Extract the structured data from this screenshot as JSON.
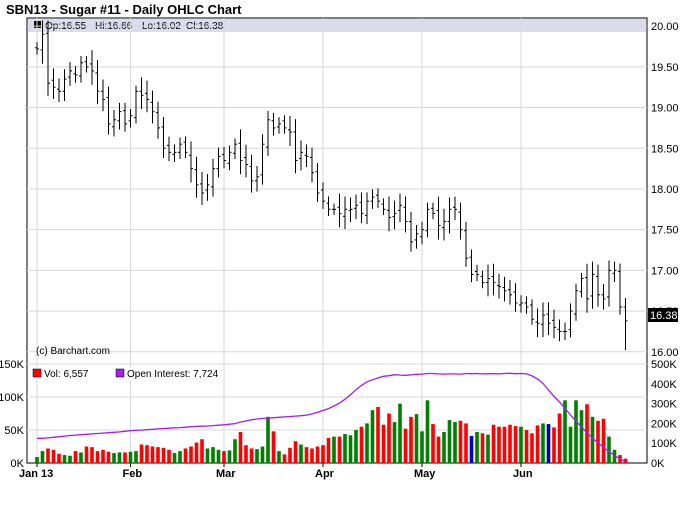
{
  "chart_data": [
    {
      "type": "ohlc",
      "title": "SBN13 - Sugar #11 - Daily OHLC Chart",
      "info": {
        "open": "Op:16.55",
        "high": "Hi:16.66",
        "low": "Lo:16.02",
        "close": "Cl:16.38"
      },
      "watermark": "(c) Barchart.com",
      "last_price_label": "16.38",
      "y_ticks": [
        "20.00",
        "19.50",
        "19.00",
        "18.50",
        "18.00",
        "17.50",
        "17.00",
        "16.50",
        "16.00"
      ],
      "ylim": [
        15.85,
        20.1
      ],
      "x_tick_labels": [
        "Jan 13",
        "Feb",
        "Mar",
        "Apr",
        "May",
        "Jun"
      ],
      "bar_color": "#000000",
      "grid": true,
      "closes": [
        19.72,
        19.9,
        19.3,
        19.25,
        19.2,
        19.35,
        19.45,
        19.4,
        19.55,
        19.5,
        19.45,
        19.2,
        19.1,
        18.8,
        18.85,
        18.95,
        18.8,
        18.9,
        19.2,
        19.15,
        19.1,
        18.95,
        18.75,
        18.5,
        18.45,
        18.45,
        18.55,
        18.45,
        18.25,
        18.05,
        17.95,
        18.05,
        18.25,
        18.4,
        18.35,
        18.45,
        18.55,
        18.35,
        18.3,
        18.1,
        18.15,
        18.55,
        18.85,
        18.75,
        18.8,
        18.75,
        18.7,
        18.35,
        18.45,
        18.4,
        18.2,
        17.95,
        17.85,
        17.75,
        17.75,
        17.7,
        17.75,
        17.75,
        17.8,
        17.7,
        17.85,
        17.9,
        17.85,
        17.75,
        17.65,
        17.7,
        17.8,
        17.6,
        17.35,
        17.45,
        17.5,
        17.75,
        17.7,
        17.55,
        17.6,
        17.75,
        17.75,
        17.5,
        17.15,
        16.95,
        16.95,
        16.85,
        16.9,
        16.85,
        16.8,
        16.75,
        16.7,
        16.6,
        16.6,
        16.55,
        16.4,
        16.35,
        16.45,
        16.35,
        16.3,
        16.25,
        16.25,
        16.5,
        16.75,
        16.9,
        16.65,
        16.95,
        16.7,
        16.65,
        17.0,
        17.0,
        16.55,
        16.38
      ],
      "volume": {
        "legend": "Vol: 6,557",
        "y_ticks": [
          "150K",
          "100K",
          "50K",
          "0K"
        ],
        "ylim": [
          0,
          150000
        ],
        "up_color": "#008000",
        "down_color": "#ff0000",
        "neutral_color": "#0000cc",
        "values": [
          9000,
          18000,
          22000,
          20000,
          14000,
          12000,
          11000,
          18000,
          16000,
          25000,
          24000,
          18000,
          20000,
          17000,
          15000,
          16000,
          16000,
          17000,
          18000,
          28000,
          27000,
          25000,
          24000,
          23000,
          20000,
          15000,
          18000,
          22000,
          25000,
          31000,
          36000,
          22000,
          24000,
          20000,
          18000,
          19000,
          36000,
          47000,
          27000,
          22000,
          21000,
          25000,
          70000,
          48000,
          18000,
          13000,
          23000,
          33000,
          28000,
          24000,
          22000,
          25000,
          27000,
          38000,
          40000,
          40000,
          44000,
          42000,
          50000,
          55000,
          60000,
          80000,
          85000,
          58000,
          75000,
          62000,
          90000,
          52000,
          70000,
          74000,
          48000,
          95000,
          59000,
          40000,
          47000,
          65000,
          62000,
          64000,
          60000,
          41000,
          47000,
          45000,
          43000,
          58000,
          55000,
          55000,
          58000,
          56000,
          55000,
          50000,
          45000,
          57000,
          60000,
          59000,
          54000,
          75000,
          95000,
          55000,
          95000,
          80000,
          89000,
          70000,
          64000,
          67000,
          40000,
          20000,
          12000,
          6557
        ]
      },
      "open_interest": {
        "legend": "Open Interest: 7,724",
        "y_ticks": [
          "500K",
          "400K",
          "300K",
          "200K",
          "100K",
          "0K"
        ],
        "ylim": [
          0,
          500000
        ],
        "color": "#a020f0",
        "values": [
          125000,
          125000,
          127000,
          130000,
          133000,
          136000,
          139000,
          141000,
          143000,
          145000,
          147000,
          149000,
          151000,
          153000,
          155000,
          157000,
          160000,
          163000,
          165000,
          166000,
          168000,
          170000,
          172000,
          174000,
          176000,
          178000,
          179000,
          181000,
          183000,
          185000,
          186000,
          187000,
          189000,
          191000,
          193000,
          196000,
          199000,
          207000,
          212000,
          218000,
          222000,
          225000,
          227000,
          229000,
          231000,
          233000,
          235000,
          237000,
          239000,
          242000,
          248000,
          256000,
          265000,
          275000,
          288000,
          302000,
          322000,
          345000,
          370000,
          392000,
          410000,
          420000,
          430000,
          438000,
          441000,
          446000,
          444000,
          443000,
          445000,
          448000,
          449000,
          452000,
          452000,
          450000,
          449000,
          450000,
          450000,
          449000,
          452000,
          451000,
          452000,
          450000,
          451000,
          451000,
          450000,
          452000,
          453000,
          451000,
          452000,
          450000,
          440000,
          425000,
          402000,
          368000,
          337000,
          308000,
          276000,
          242000,
          212000,
          182000,
          152000,
          126000,
          102000,
          80000,
          58000,
          38000,
          20000,
          7724
        ]
      }
    }
  ]
}
